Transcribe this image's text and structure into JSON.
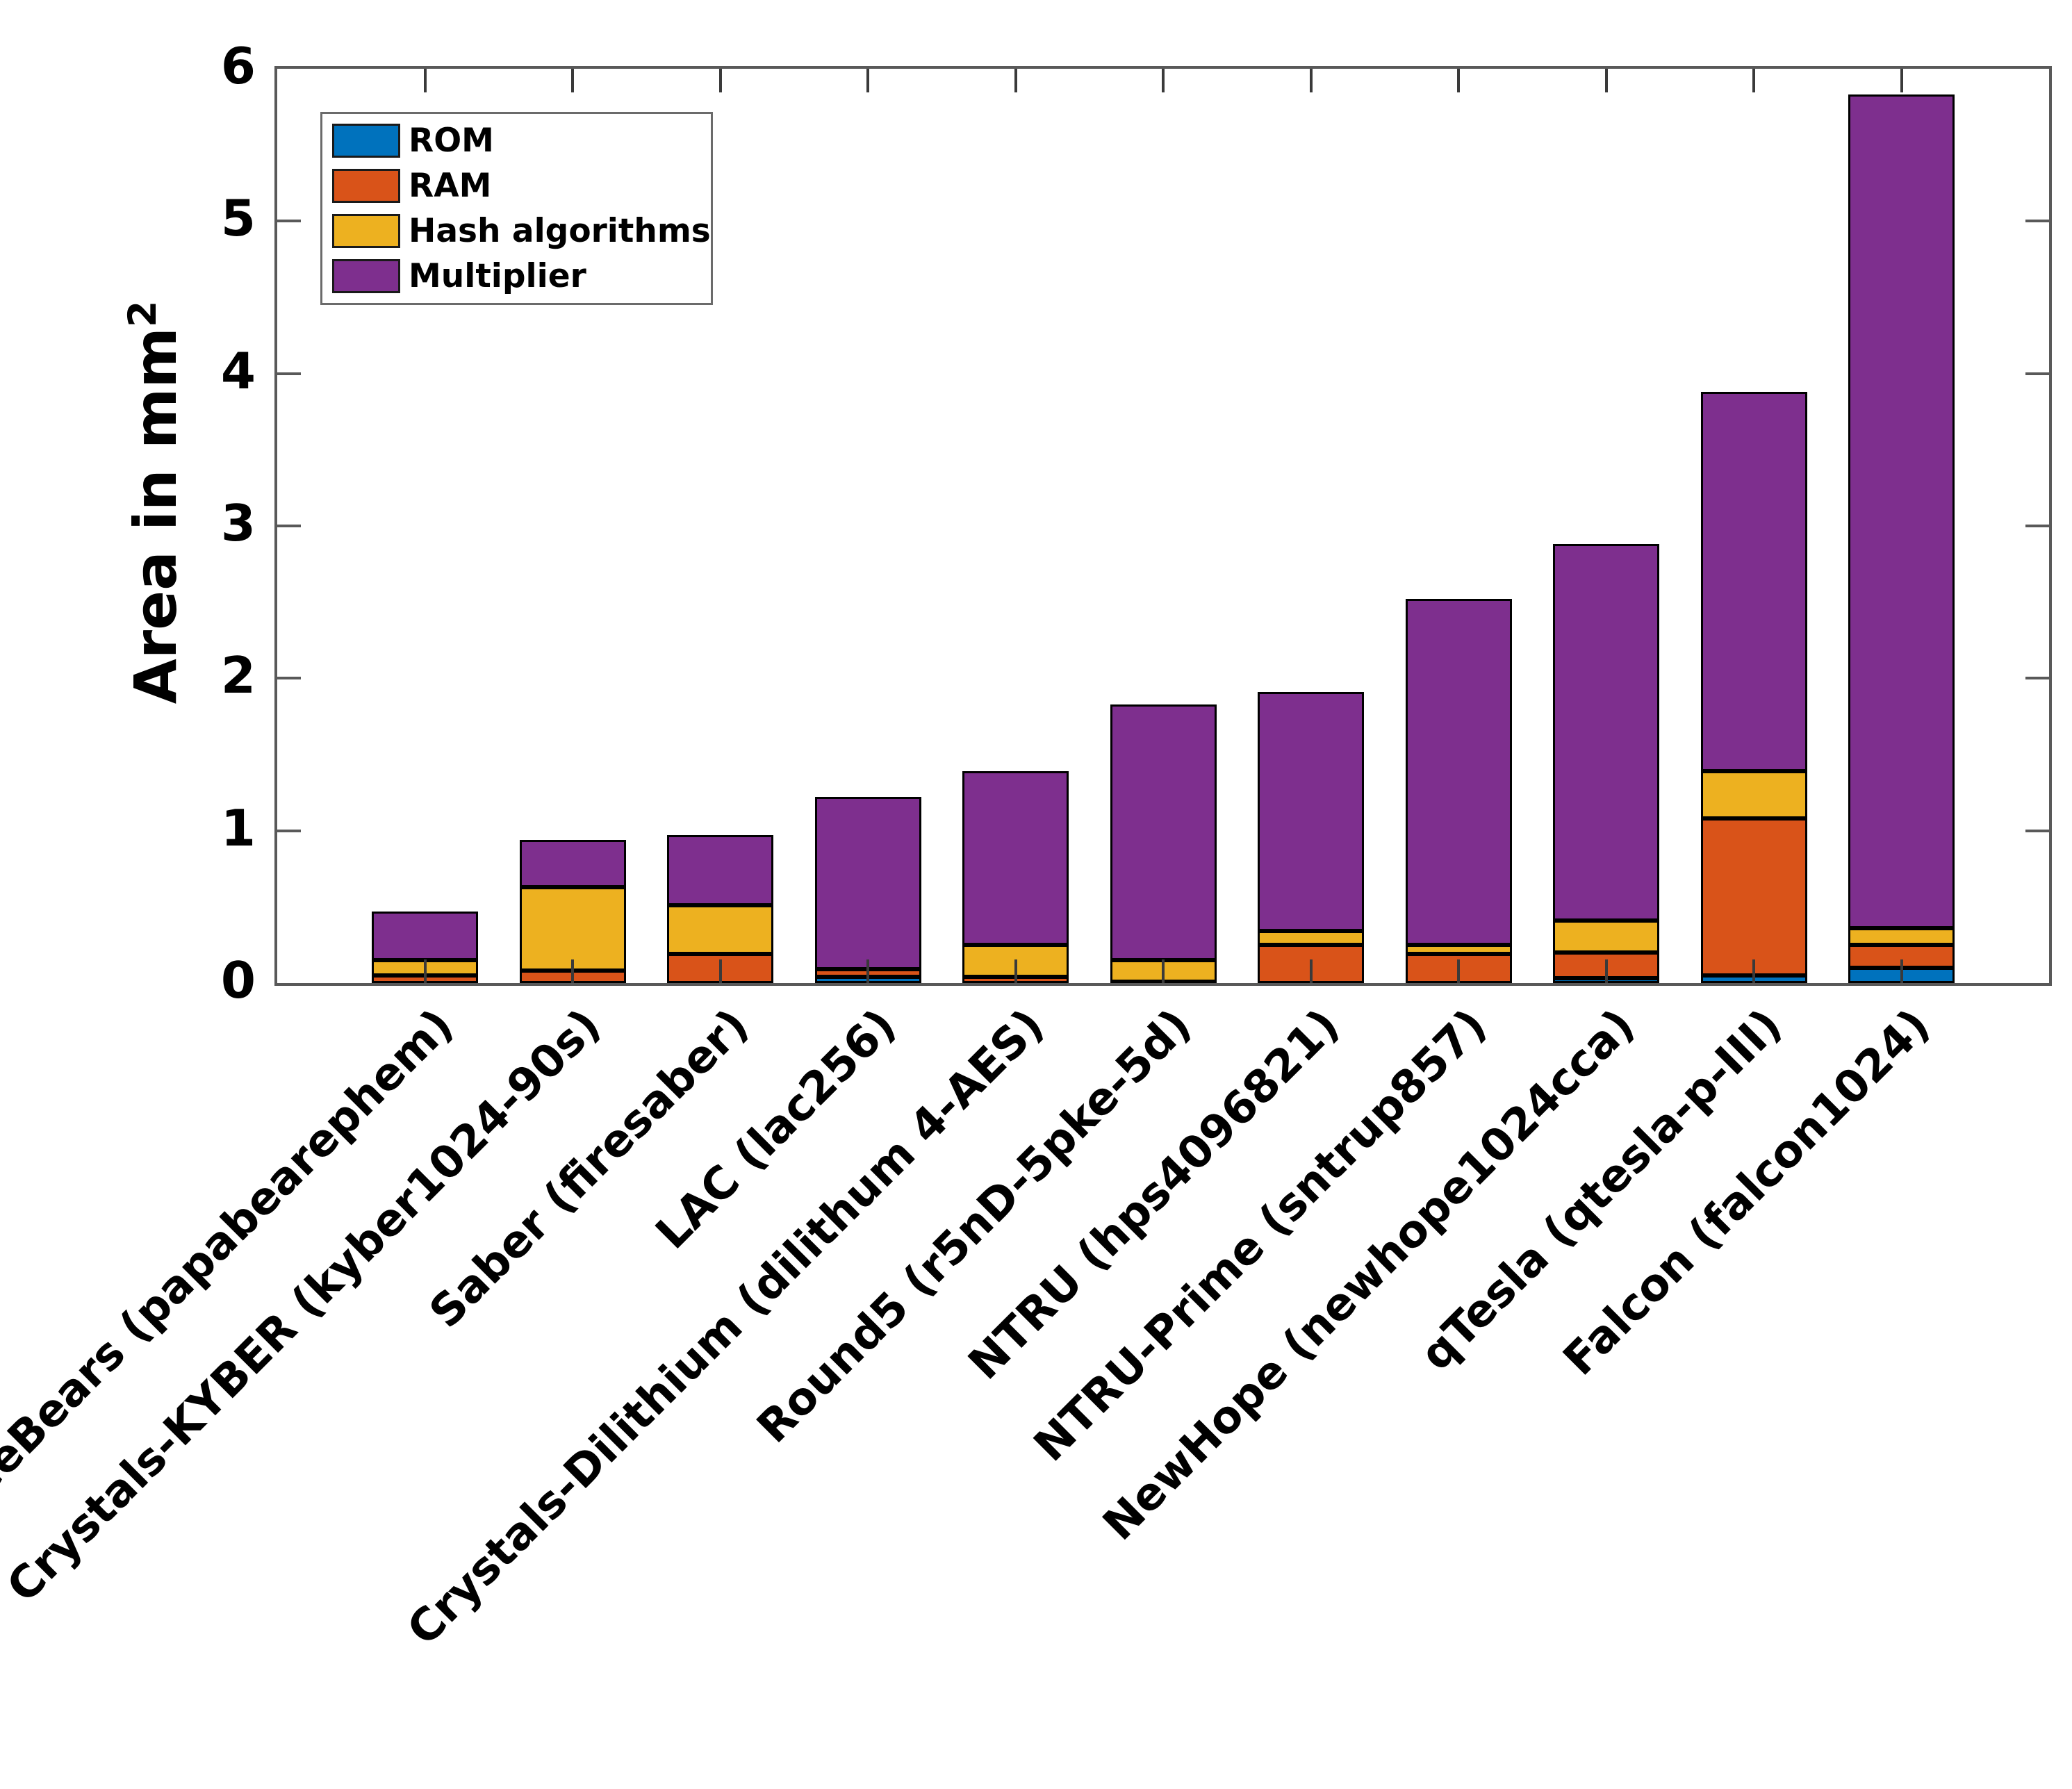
{
  "colors": {
    "rom": "#0072BD",
    "ram": "#D95319",
    "hash": "#EDB120",
    "multiplier": "#7E2F8E",
    "axis": "#595959",
    "bar_edge": "#000000",
    "text": "#000000",
    "background": "#ffffff"
  },
  "legend": {
    "position": "top-left",
    "entries": [
      {
        "label": "ROM",
        "color": "#0072BD"
      },
      {
        "label": "RAM",
        "color": "#D95319"
      },
      {
        "label": "Hash algorithms",
        "color": "#EDB120"
      },
      {
        "label": "Multiplier",
        "color": "#7E2F8E"
      }
    ]
  },
  "chart_data": {
    "type": "bar",
    "stacked": true,
    "title": "",
    "xlabel": "",
    "ylabel_main": "Area in mm",
    "ylabel_superscript": "2",
    "ylim": [
      0,
      6
    ],
    "ytick_labels": [
      "0",
      "1",
      "2",
      "3",
      "4",
      "5",
      "6"
    ],
    "grid": false,
    "legend_position": "top-left-inside",
    "categories": [
      "ThreeBears (papabearephem)",
      "Crystals-KYBER (kyber1024-90s)",
      "Saber (firesaber)",
      "LAC (lac256)",
      "Crystals-Dilithium (dilithum 4-AES)",
      "Round5 (r5nD-5pke-5d)",
      "NTRU (hps4096821)",
      "NTRU-Prime (sntrup857)",
      "NewHope (newhope1024cca)",
      "qTesla (qtesla-p-III)",
      "Falcon (falcon1024)"
    ],
    "series": [
      {
        "name": "ROM",
        "color": "#0072BD",
        "values": [
          0,
          0,
          0,
          0.04,
          0,
          0,
          0,
          0,
          0.03,
          0.05,
          0.1
        ]
      },
      {
        "name": "RAM",
        "color": "#D95319",
        "values": [
          0.05,
          0.08,
          0.19,
          0.05,
          0.04,
          0.01,
          0.25,
          0.19,
          0.17,
          1.03,
          0.15
        ]
      },
      {
        "name": "Hash algorithms",
        "color": "#EDB120",
        "values": [
          0.1,
          0.55,
          0.32,
          0,
          0.21,
          0.14,
          0.09,
          0.06,
          0.21,
          0.31,
          0.11
        ]
      },
      {
        "name": "Multiplier",
        "color": "#7E2F8E",
        "values": [
          0.32,
          0.31,
          0.46,
          1.13,
          1.14,
          1.68,
          1.57,
          2.27,
          2.47,
          2.49,
          5.47
        ]
      }
    ],
    "totals": [
      0.47,
      0.94,
      0.97,
      1.22,
      1.39,
      1.83,
      1.91,
      2.52,
      2.88,
      3.88,
      5.83
    ]
  }
}
